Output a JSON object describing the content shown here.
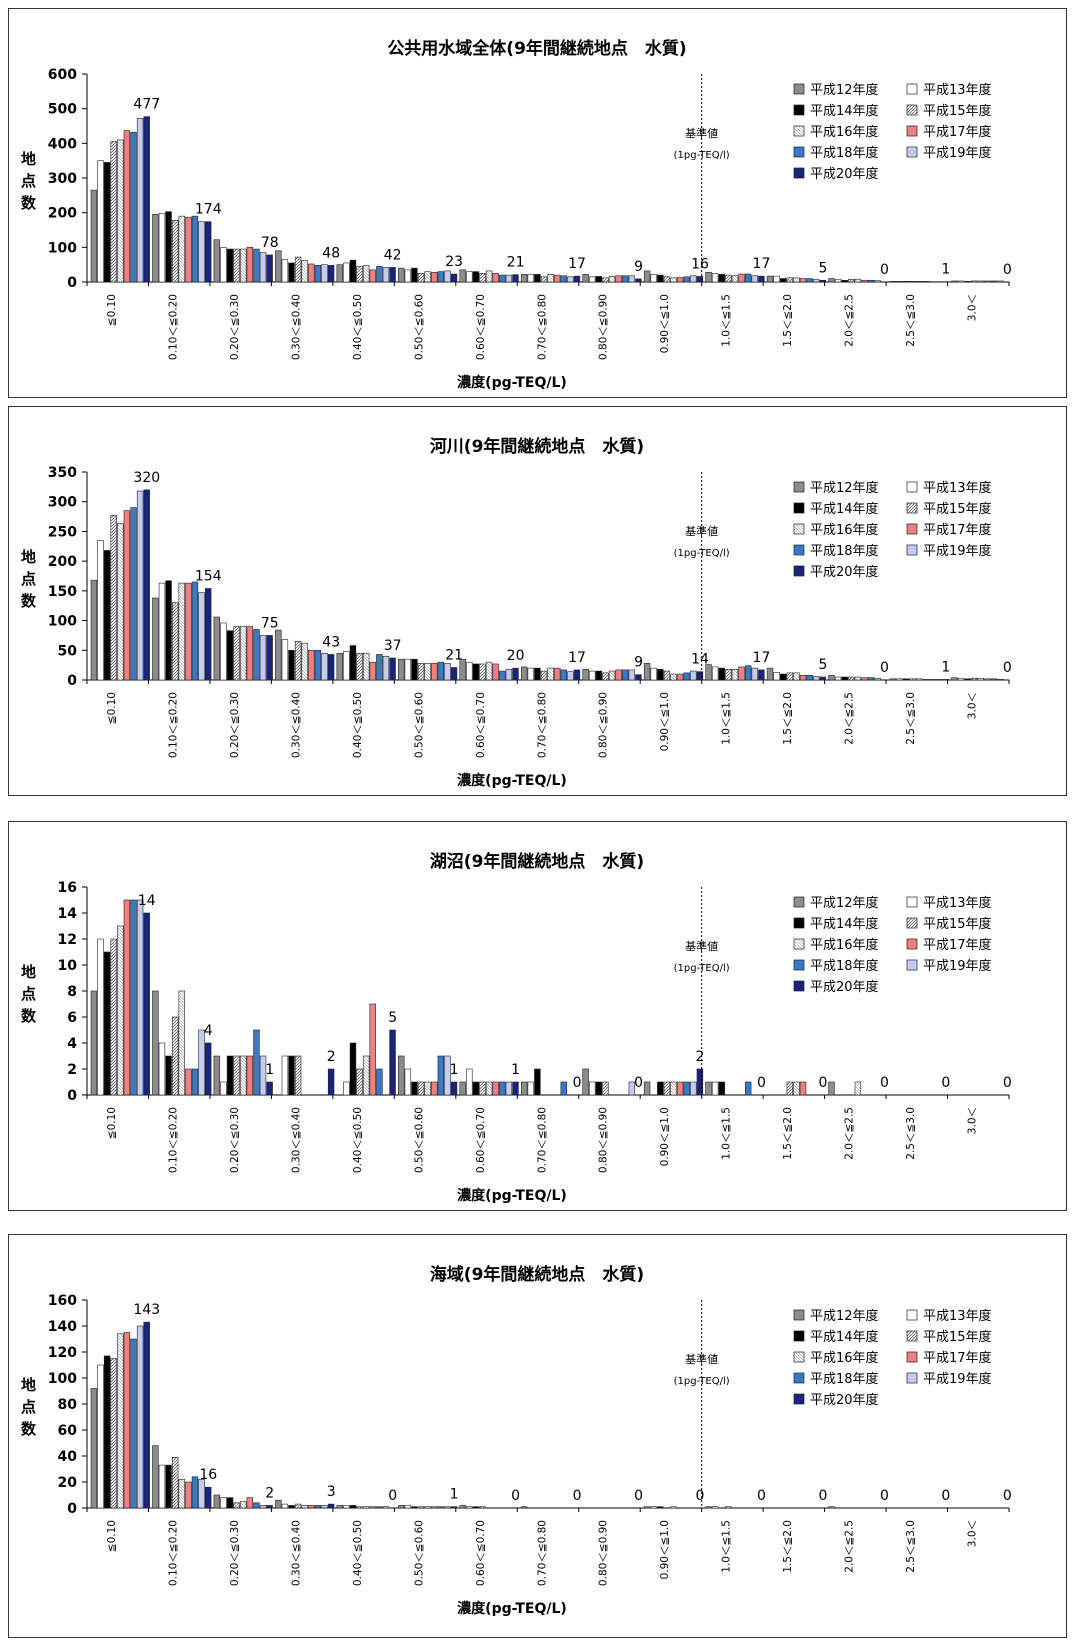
{
  "common": {
    "xlabel": "濃度(pg-TEQ/L)",
    "ylabel": "地点数",
    "threshold_label": "基準値",
    "threshold_sub": "(1pg-TEQ/l)",
    "categories": [
      "≦0.10",
      "0.10＜≦0.20",
      "0.20＜≦0.30",
      "0.30＜≦0.40",
      "0.40＜≦0.50",
      "0.50＜≦0.60",
      "0.60＜≦0.70",
      "0.70＜≦0.80",
      "0.80＜≦0.90",
      "0.90＜≦1.0",
      "1.0＜≦1.5",
      "1.5＜≦2.0",
      "2.0＜≦2.5",
      "2.5＜≦3.0",
      "3.0＜"
    ],
    "series_names": [
      "平成12年度",
      "平成13年度",
      "平成14年度",
      "平成15年度",
      "平成16年度",
      "平成17年度",
      "平成18年度",
      "平成19年度",
      "平成20年度"
    ],
    "series_colors": [
      "#8c8c8c",
      "#ffffff",
      "#000000",
      "#b4b4b4",
      "#ffffff",
      "#f08080",
      "#3a78c8",
      "#c4cdf0",
      "#1a237e"
    ]
  },
  "chart_data": [
    {
      "type": "bar",
      "title": "公共用水域全体(9年間継続地点　水質)",
      "ylim": [
        0,
        600
      ],
      "yticks": [
        0,
        100,
        200,
        300,
        400,
        500,
        600
      ],
      "series": [
        {
          "name": "平成12年度",
          "values": [
            265,
            195,
            122,
            90,
            50,
            40,
            35,
            22,
            22,
            32,
            28,
            17,
            10,
            2,
            3
          ]
        },
        {
          "name": "平成13年度",
          "values": [
            350,
            198,
            100,
            65,
            55,
            35,
            30,
            22,
            15,
            22,
            25,
            17,
            8,
            2,
            3
          ]
        },
        {
          "name": "平成14年度",
          "values": [
            345,
            203,
            95,
            55,
            63,
            40,
            30,
            22,
            16,
            20,
            22,
            10,
            5,
            2,
            2
          ]
        },
        {
          "name": "平成15年度",
          "values": [
            405,
            178,
            95,
            72,
            45,
            25,
            25,
            15,
            12,
            15,
            20,
            12,
            8,
            2,
            3
          ]
        },
        {
          "name": "平成16年度",
          "values": [
            410,
            190,
            95,
            62,
            48,
            30,
            32,
            22,
            16,
            12,
            18,
            12,
            8,
            2,
            3
          ]
        },
        {
          "name": "平成17年度",
          "values": [
            437,
            187,
            100,
            52,
            35,
            28,
            25,
            20,
            18,
            13,
            23,
            10,
            5,
            2,
            3
          ]
        },
        {
          "name": "平成18年度",
          "values": [
            432,
            190,
            95,
            48,
            45,
            30,
            20,
            18,
            18,
            15,
            23,
            10,
            5,
            1,
            3
          ]
        },
        {
          "name": "平成19年度",
          "values": [
            472,
            174,
            85,
            50,
            42,
            32,
            20,
            15,
            18,
            18,
            18,
            8,
            4,
            1,
            3
          ]
        },
        {
          "name": "平成20年度",
          "values": [
            477,
            174,
            78,
            48,
            42,
            23,
            21,
            17,
            9,
            16,
            17,
            5,
            0,
            1,
            0
          ]
        }
      ],
      "last_labels": [
        "477",
        "174",
        "78",
        "48",
        "42",
        "23",
        "21",
        "17",
        "9",
        "16",
        "17",
        "5",
        "0",
        "1",
        "0"
      ]
    },
    {
      "type": "bar",
      "title": "河川(9年間継続地点　水質)",
      "ylim": [
        0,
        350
      ],
      "yticks": [
        0,
        50,
        100,
        150,
        200,
        250,
        300,
        350
      ],
      "series": [
        {
          "name": "平成12年度",
          "values": [
            168,
            138,
            106,
            84,
            45,
            35,
            35,
            22,
            18,
            28,
            26,
            20,
            8,
            2,
            4
          ]
        },
        {
          "name": "平成13年度",
          "values": [
            235,
            163,
            96,
            68,
            48,
            35,
            30,
            20,
            15,
            20,
            22,
            13,
            5,
            2,
            3
          ]
        },
        {
          "name": "平成14年度",
          "values": [
            218,
            167,
            83,
            50,
            58,
            35,
            27,
            20,
            15,
            18,
            20,
            10,
            5,
            2,
            2
          ]
        },
        {
          "name": "平成15年度",
          "values": [
            277,
            130,
            90,
            65,
            45,
            28,
            27,
            15,
            12,
            15,
            18,
            12,
            5,
            2,
            3
          ]
        },
        {
          "name": "平成16年度",
          "values": [
            263,
            163,
            90,
            62,
            45,
            28,
            30,
            20,
            15,
            10,
            18,
            12,
            5,
            2,
            3
          ]
        },
        {
          "name": "平成17年度",
          "values": [
            285,
            163,
            90,
            50,
            30,
            28,
            27,
            20,
            17,
            10,
            22,
            8,
            4,
            1,
            2
          ]
        },
        {
          "name": "平成18年度",
          "values": [
            290,
            165,
            85,
            50,
            43,
            30,
            15,
            17,
            17,
            12,
            24,
            8,
            4,
            1,
            2
          ]
        },
        {
          "name": "平成19年度",
          "values": [
            318,
            147,
            75,
            45,
            40,
            28,
            18,
            14,
            17,
            15,
            20,
            6,
            3,
            1,
            1
          ]
        },
        {
          "name": "平成20年度",
          "values": [
            320,
            154,
            75,
            43,
            37,
            21,
            20,
            17,
            9,
            14,
            17,
            5,
            0,
            1,
            0
          ]
        }
      ],
      "last_labels": [
        "320",
        "154",
        "75",
        "43",
        "37",
        "21",
        "20",
        "17",
        "9",
        "14",
        "17",
        "5",
        "0",
        "1",
        "0"
      ]
    },
    {
      "type": "bar",
      "title": "湖沼(9年間継続地点　水質)",
      "ylim": [
        0,
        16
      ],
      "yticks": [
        0,
        2,
        4,
        6,
        8,
        10,
        12,
        14,
        16
      ],
      "series": [
        {
          "name": "平成12年度",
          "values": [
            8,
            8,
            3,
            0,
            0,
            3,
            1,
            1,
            2,
            1,
            1,
            0,
            1,
            0,
            0
          ]
        },
        {
          "name": "平成13年度",
          "values": [
            12,
            4,
            1,
            3,
            1,
            2,
            2,
            1,
            1,
            0,
            1,
            0,
            0,
            0,
            0
          ]
        },
        {
          "name": "平成14年度",
          "values": [
            11,
            3,
            3,
            3,
            4,
            1,
            1,
            2,
            1,
            1,
            1,
            0,
            0,
            0,
            0
          ]
        },
        {
          "name": "平成15年度",
          "values": [
            12,
            6,
            3,
            3,
            2,
            1,
            1,
            0,
            1,
            1,
            0,
            1,
            0,
            0,
            0
          ]
        },
        {
          "name": "平成16年度",
          "values": [
            13,
            8,
            3,
            0,
            3,
            1,
            1,
            0,
            0,
            1,
            0,
            1,
            1,
            0,
            0
          ]
        },
        {
          "name": "平成17年度",
          "values": [
            15,
            2,
            3,
            0,
            7,
            1,
            1,
            0,
            0,
            1,
            0,
            1,
            0,
            0,
            0
          ]
        },
        {
          "name": "平成18年度",
          "values": [
            15,
            2,
            5,
            0,
            2,
            3,
            1,
            1,
            0,
            1,
            1,
            0,
            0,
            0,
            0
          ]
        },
        {
          "name": "平成19年度",
          "values": [
            15,
            5,
            3,
            0,
            0,
            3,
            1,
            0,
            1,
            1,
            0,
            0,
            0,
            0,
            0
          ]
        },
        {
          "name": "平成20年度",
          "values": [
            14,
            4,
            1,
            2,
            5,
            1,
            1,
            0,
            0,
            2,
            0,
            0,
            0,
            0,
            0
          ]
        }
      ],
      "last_labels": [
        "14",
        "4",
        "1",
        "2",
        "5",
        "1",
        "1",
        "0",
        "0",
        "2",
        "0",
        "0",
        "0",
        "0",
        "0"
      ]
    },
    {
      "type": "bar",
      "title": "海域(9年間継続地点　水質)",
      "ylim": [
        0,
        160
      ],
      "yticks": [
        0,
        20,
        40,
        60,
        80,
        100,
        120,
        140,
        160
      ],
      "series": [
        {
          "name": "平成12年度",
          "values": [
            92,
            48,
            10,
            6,
            2,
            2,
            2,
            1,
            0,
            1,
            1,
            0,
            1,
            0,
            0
          ]
        },
        {
          "name": "平成13年度",
          "values": [
            110,
            33,
            8,
            3,
            2,
            2,
            1,
            0,
            0,
            1,
            1,
            0,
            0,
            0,
            0
          ]
        },
        {
          "name": "平成14年度",
          "values": [
            117,
            33,
            8,
            2,
            2,
            1,
            1,
            0,
            0,
            1,
            0,
            0,
            0,
            0,
            0
          ]
        },
        {
          "name": "平成15年度",
          "values": [
            115,
            39,
            4,
            3,
            1,
            1,
            1,
            0,
            0,
            0,
            1,
            0,
            0,
            0,
            0
          ]
        },
        {
          "name": "平成16年度",
          "values": [
            134,
            22,
            5,
            2,
            1,
            1,
            0,
            0,
            0,
            1,
            0,
            0,
            0,
            0,
            0
          ]
        },
        {
          "name": "平成17年度",
          "values": [
            135,
            20,
            8,
            2,
            1,
            1,
            0,
            0,
            0,
            0,
            0,
            0,
            0,
            0,
            0
          ]
        },
        {
          "name": "平成18年度",
          "values": [
            130,
            24,
            4,
            2,
            1,
            1,
            0,
            0,
            0,
            0,
            0,
            0,
            0,
            0,
            0
          ]
        },
        {
          "name": "平成19年度",
          "values": [
            140,
            22,
            2,
            2,
            1,
            1,
            0,
            0,
            0,
            0,
            0,
            0,
            0,
            0,
            0
          ]
        },
        {
          "name": "平成20年度",
          "values": [
            143,
            16,
            2,
            3,
            0,
            1,
            0,
            0,
            0,
            0,
            0,
            0,
            0,
            0,
            0
          ]
        }
      ],
      "last_labels": [
        "143",
        "16",
        "2",
        "3",
        "0",
        "1",
        "0",
        "0",
        "0",
        "0",
        "0",
        "0",
        "0",
        "0",
        "0"
      ]
    }
  ]
}
